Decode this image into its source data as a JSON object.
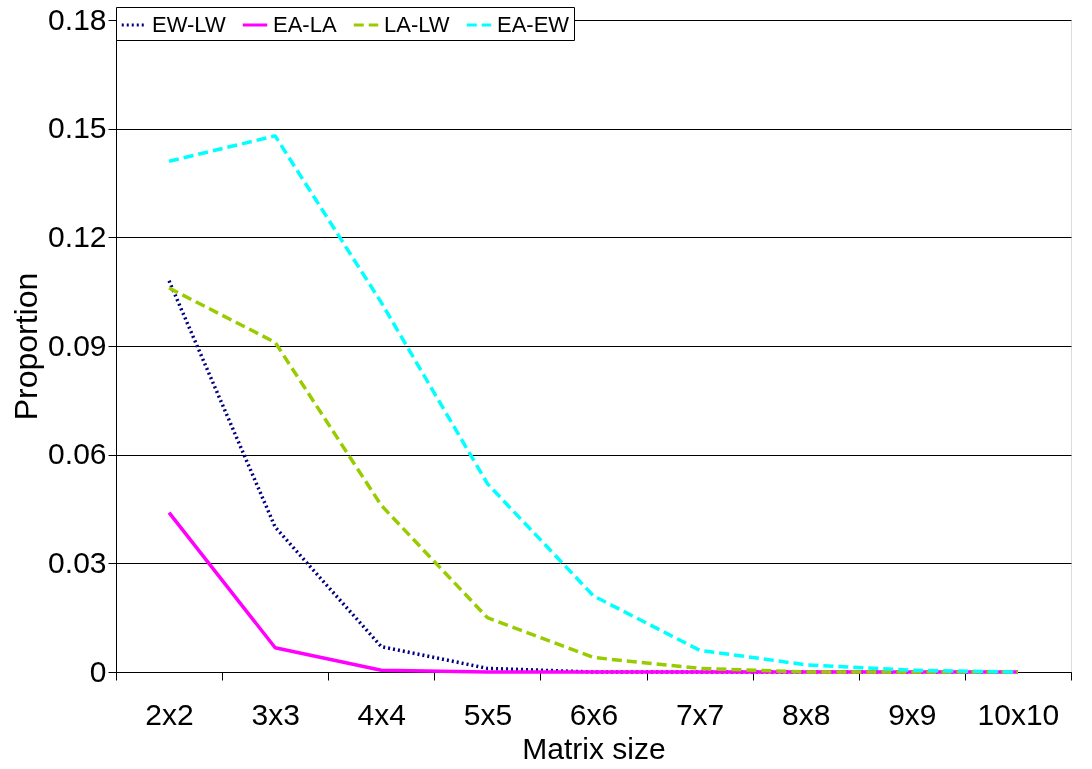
{
  "chart_data": {
    "type": "line",
    "xlabel": "Matrix size",
    "ylabel": "Proportion",
    "categories": [
      "2x2",
      "3x3",
      "4x4",
      "5x5",
      "6x6",
      "7x7",
      "8x8",
      "9x9",
      "10x10"
    ],
    "ylim": [
      0,
      0.18
    ],
    "yticks": [
      {
        "value": 0,
        "label": "0"
      },
      0.03,
      0.06,
      0.09,
      0.12,
      0.15,
      0.18
    ],
    "grid": "y",
    "legend": "top",
    "marker": "none",
    "series": [
      {
        "name": "EW-LW",
        "color": "#000080",
        "line_style": "dotted",
        "values": [
          0.108,
          0.04,
          0.007,
          0.001,
          0,
          0,
          0,
          0,
          0
        ]
      },
      {
        "name": "EA-LA",
        "color": "#ff00ff",
        "line_style": "solid",
        "values": [
          0.044,
          0.0067,
          0.0005,
          0,
          0,
          0,
          0,
          0,
          0
        ]
      },
      {
        "name": "LA-LW",
        "color": "#99cc00",
        "line_style": "dashed",
        "values": [
          0.106,
          0.091,
          0.046,
          0.015,
          0.004,
          0.001,
          0,
          0,
          0
        ]
      },
      {
        "name": "EA-EW",
        "color": "#00ffff",
        "line_style": "dashed",
        "values": [
          0.141,
          0.148,
          0.102,
          0.052,
          0.021,
          0.006,
          0.002,
          0.0005,
          0
        ]
      }
    ]
  }
}
